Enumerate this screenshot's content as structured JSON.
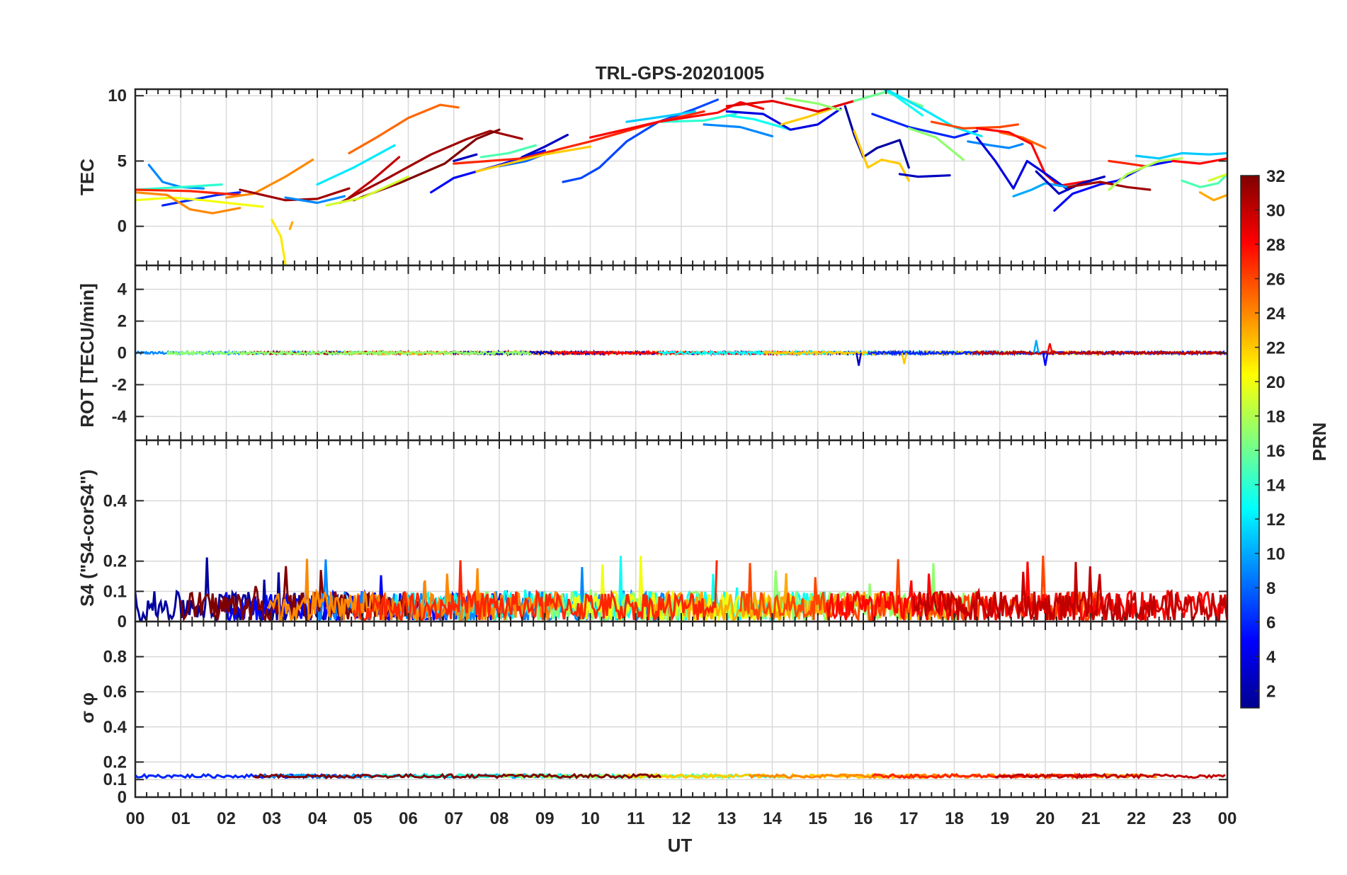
{
  "chart_data": {
    "type": "line",
    "title": "TRL-GPS-20201005",
    "xlabel": "UT",
    "x_ticks": [
      "00",
      "01",
      "02",
      "03",
      "04",
      "05",
      "06",
      "07",
      "08",
      "09",
      "10",
      "11",
      "12",
      "13",
      "14",
      "15",
      "16",
      "17",
      "18",
      "19",
      "20",
      "21",
      "22",
      "23",
      "00"
    ],
    "xlim": [
      0,
      24
    ],
    "grid": true,
    "colorbar": {
      "label": "PRN",
      "colormap": "jet",
      "range": [
        1,
        32
      ],
      "ticks": [
        "2",
        "4",
        "6",
        "8",
        "10",
        "12",
        "14",
        "16",
        "18",
        "20",
        "22",
        "24",
        "26",
        "28",
        "30",
        "32"
      ],
      "tick_values": [
        2,
        4,
        6,
        8,
        10,
        12,
        14,
        16,
        18,
        20,
        22,
        24,
        26,
        28,
        30,
        32
      ]
    },
    "panels": [
      {
        "name": "tec",
        "ylabel": "TEC",
        "ylim": [
          -3,
          10.5
        ],
        "y_ticks": [
          "0",
          "5",
          "10"
        ],
        "y_tick_values": [
          0,
          5,
          10
        ],
        "series": [
          {
            "prn": 9,
            "x": [
              0.3,
              0.6,
              1.0,
              1.5
            ],
            "y": [
              4.7,
              3.4,
              3.0,
              2.9
            ]
          },
          {
            "prn": 6,
            "x": [
              0.6,
              1.2,
              1.8,
              2.3
            ],
            "y": [
              1.6,
              2.0,
              2.4,
              2.6
            ]
          },
          {
            "prn": 20,
            "x": [
              0.0,
              0.8,
              1.5,
              2.0,
              2.8
            ],
            "y": [
              2.0,
              2.2,
              2.0,
              1.8,
              1.5
            ]
          },
          {
            "prn": 24,
            "x": [
              0.0,
              0.7,
              1.2,
              1.7,
              2.3
            ],
            "y": [
              2.6,
              2.4,
              1.3,
              1.0,
              1.4
            ]
          },
          {
            "prn": 14,
            "x": [
              0.0,
              1.0,
              1.9
            ],
            "y": [
              2.8,
              3.0,
              3.2
            ]
          },
          {
            "prn": 27,
            "x": [
              0.0,
              1.2,
              2.3
            ],
            "y": [
              2.8,
              2.7,
              2.4
            ]
          },
          {
            "prn": 24,
            "x": [
              2.0,
              2.6,
              3.3,
              3.9
            ],
            "y": [
              2.2,
              2.5,
              3.8,
              5.1
            ]
          },
          {
            "prn": 21,
            "x": [
              3.0,
              3.2,
              3.3
            ],
            "y": [
              0.5,
              -0.8,
              -2.9
            ]
          },
          {
            "prn": 23,
            "x": [
              3.4,
              3.45
            ],
            "y": [
              -0.2,
              0.3
            ]
          },
          {
            "prn": 31,
            "x": [
              2.3,
              2.8,
              3.3,
              4.0,
              4.7
            ],
            "y": [
              2.8,
              2.4,
              2.0,
              2.1,
              2.9
            ]
          },
          {
            "prn": 9,
            "x": [
              3.3,
              4.0,
              4.6
            ],
            "y": [
              2.2,
              1.8,
              2.3
            ]
          },
          {
            "prn": 12,
            "x": [
              4.0,
              4.8,
              5.7
            ],
            "y": [
              3.2,
              4.5,
              6.2
            ]
          },
          {
            "prn": 25,
            "x": [
              4.7,
              5.3,
              6.0,
              6.7,
              7.1
            ],
            "y": [
              5.6,
              6.8,
              8.3,
              9.3,
              9.1
            ]
          },
          {
            "prn": 30,
            "x": [
              4.7,
              5.2,
              5.8
            ],
            "y": [
              2.2,
              3.5,
              5.3
            ]
          },
          {
            "prn": 31,
            "x": [
              4.5,
              5.5,
              6.5,
              7.3,
              7.8,
              8.5
            ],
            "y": [
              1.8,
              3.6,
              5.5,
              6.7,
              7.3,
              6.7
            ]
          },
          {
            "prn": 32,
            "x": [
              4.8,
              5.8,
              6.8,
              7.5,
              8.0
            ],
            "y": [
              2.0,
              3.3,
              4.8,
              6.7,
              7.4
            ]
          },
          {
            "prn": 19,
            "x": [
              4.2,
              5.0,
              6.0
            ],
            "y": [
              1.6,
              2.2,
              3.8
            ]
          },
          {
            "prn": 5,
            "x": [
              6.5,
              7.0,
              8.0,
              9.0
            ],
            "y": [
              2.6,
              3.7,
              4.7,
              5.8
            ]
          },
          {
            "prn": 3,
            "x": [
              7.0,
              7.5
            ],
            "y": [
              5.0,
              5.5
            ]
          },
          {
            "prn": 8,
            "x": [
              8.0,
              8.6,
              9.2
            ],
            "y": [
              4.6,
              5.0,
              5.8
            ]
          },
          {
            "prn": 15,
            "x": [
              7.6,
              8.2,
              8.8
            ],
            "y": [
              5.3,
              5.6,
              6.2
            ]
          },
          {
            "prn": 3,
            "x": [
              8.5,
              9.0,
              9.5
            ],
            "y": [
              5.3,
              6.1,
              7.0
            ]
          },
          {
            "prn": 7,
            "x": [
              9.4,
              9.8,
              10.2,
              10.8,
              11.5,
              12.3,
              12.8
            ],
            "y": [
              3.4,
              3.7,
              4.5,
              6.5,
              8.0,
              9.0,
              9.7
            ]
          },
          {
            "prn": 27,
            "x": [
              7.0,
              8.5,
              10.0,
              11.5,
              12.5
            ],
            "y": [
              4.8,
              5.2,
              6.5,
              8.0,
              8.8
            ]
          },
          {
            "prn": 22,
            "x": [
              7.5,
              9.0,
              10.0
            ],
            "y": [
              4.2,
              5.5,
              6.1
            ]
          },
          {
            "prn": 11,
            "x": [
              10.8,
              11.6,
              12.3
            ],
            "y": [
              8.0,
              8.4,
              8.8
            ]
          },
          {
            "prn": 14,
            "x": [
              11.5,
              12.5,
              13.2
            ],
            "y": [
              8.0,
              8.1,
              8.6
            ]
          },
          {
            "prn": 9,
            "x": [
              12.5,
              13.3,
              14.0
            ],
            "y": [
              7.8,
              7.6,
              6.9
            ]
          },
          {
            "prn": 13,
            "x": [
              13.0,
              13.6,
              14.4
            ],
            "y": [
              8.5,
              8.2,
              7.4
            ]
          },
          {
            "prn": 28,
            "x": [
              10.0,
              11.5,
              12.8,
              13.3,
              13.8
            ],
            "y": [
              6.8,
              8.0,
              8.7,
              9.5,
              9.0
            ]
          },
          {
            "prn": 4,
            "x": [
              13.0,
              13.8,
              14.4,
              15.0,
              15.5
            ],
            "y": [
              8.8,
              8.6,
              7.4,
              7.8,
              9.0
            ]
          },
          {
            "prn": 22,
            "x": [
              14.2,
              14.8,
              15.3
            ],
            "y": [
              7.8,
              8.4,
              9.0
            ]
          },
          {
            "prn": 29,
            "x": [
              13.0,
              14.0,
              15.0,
              15.8
            ],
            "y": [
              9.2,
              9.6,
              8.8,
              9.6
            ]
          },
          {
            "prn": 17,
            "x": [
              14.3,
              15.0,
              15.5
            ],
            "y": [
              9.8,
              9.4,
              8.9
            ]
          },
          {
            "prn": 2,
            "x": [
              15.6,
              15.8,
              16.0,
              16.3,
              16.8,
              17.0
            ],
            "y": [
              9.2,
              7.0,
              5.3,
              6.0,
              6.6,
              4.5
            ]
          },
          {
            "prn": 22,
            "x": [
              15.8,
              16.1,
              16.4,
              16.8,
              17.0
            ],
            "y": [
              7.3,
              4.5,
              5.1,
              4.8,
              3.5
            ]
          },
          {
            "prn": 3,
            "x": [
              16.8,
              17.2,
              17.9
            ],
            "y": [
              4.0,
              3.8,
              3.9
            ]
          },
          {
            "prn": 16,
            "x": [
              15.8,
              16.5,
              17.3
            ],
            "y": [
              9.6,
              10.3,
              9.2
            ]
          },
          {
            "prn": 13,
            "x": [
              16.3,
              16.7,
              17.3
            ],
            "y": [
              10.8,
              10.0,
              8.5
            ]
          },
          {
            "prn": 6,
            "x": [
              16.2,
              17.0,
              18.0,
              18.5
            ],
            "y": [
              8.6,
              7.6,
              6.8,
              7.3
            ]
          },
          {
            "prn": 12,
            "x": [
              16.5,
              17.3,
              18.0,
              18.6
            ],
            "y": [
              10.5,
              9.0,
              7.6,
              6.9
            ]
          },
          {
            "prn": 17,
            "x": [
              17.0,
              17.6,
              18.2
            ],
            "y": [
              7.5,
              6.8,
              5.1
            ]
          },
          {
            "prn": 9,
            "x": [
              18.3,
              18.8,
              19.2,
              19.5
            ],
            "y": [
              6.5,
              6.2,
              6.0,
              6.3
            ]
          },
          {
            "prn": 26,
            "x": [
              17.5,
              18.2,
              19.0,
              19.4
            ],
            "y": [
              8.0,
              7.5,
              7.6,
              7.8
            ]
          },
          {
            "prn": 25,
            "x": [
              19.0,
              19.5,
              20.0
            ],
            "y": [
              7.2,
              6.8,
              6.0
            ]
          },
          {
            "prn": 28,
            "x": [
              18.5,
              19.2,
              19.7,
              20.0,
              20.3,
              21.0
            ],
            "y": [
              7.5,
              7.2,
              6.3,
              4.0,
              3.1,
              3.5
            ]
          },
          {
            "prn": 4,
            "x": [
              18.5,
              18.9,
              19.3,
              19.6,
              20.1,
              20.5
            ],
            "y": [
              6.8,
              5.0,
              2.9,
              5.0,
              3.8,
              2.8
            ]
          },
          {
            "prn": 10,
            "x": [
              19.3,
              19.7,
              20.0,
              20.5,
              21.0
            ],
            "y": [
              2.3,
              2.8,
              3.3,
              3.0,
              3.4
            ]
          },
          {
            "prn": 3,
            "x": [
              19.8,
              20.3,
              20.8,
              21.3
            ],
            "y": [
              4.2,
              2.5,
              3.3,
              3.8
            ]
          },
          {
            "prn": 5,
            "x": [
              20.2,
              20.6,
              21.2,
              21.6,
              22.2,
              22.8
            ],
            "y": [
              1.2,
              2.5,
              3.2,
              3.5,
              4.6,
              5.0
            ]
          },
          {
            "prn": 27,
            "x": [
              21.4,
              21.8,
              22.2
            ],
            "y": [
              5.0,
              4.8,
              4.6
            ]
          },
          {
            "prn": 31,
            "x": [
              20.5,
              21.2,
              21.8,
              22.3
            ],
            "y": [
              3.0,
              3.4,
              3.0,
              2.8
            ]
          },
          {
            "prn": 18,
            "x": [
              21.4,
              21.8,
              22.5,
              23.0
            ],
            "y": [
              2.8,
              4.0,
              5.0,
              5.2
            ]
          },
          {
            "prn": 11,
            "x": [
              22.0,
              22.5,
              23.0,
              23.6,
              24.0
            ],
            "y": [
              5.4,
              5.2,
              5.6,
              5.5,
              5.6
            ]
          },
          {
            "prn": 15,
            "x": [
              23.0,
              23.4,
              23.8,
              24.0
            ],
            "y": [
              3.5,
              3.0,
              3.3,
              4.0
            ]
          },
          {
            "prn": 23,
            "x": [
              23.4,
              23.7,
              24.0
            ],
            "y": [
              2.6,
              2.0,
              2.4
            ]
          },
          {
            "prn": 28,
            "x": [
              22.8,
              23.4,
              24.0
            ],
            "y": [
              5.0,
              4.8,
              5.2
            ]
          },
          {
            "prn": 19,
            "x": [
              23.6,
              24.0
            ],
            "y": [
              3.5,
              4.0
            ]
          }
        ]
      },
      {
        "name": "rot",
        "ylabel": "ROT [TECU/min]",
        "ylim": [
          -5.5,
          5.5
        ],
        "y_ticks": [
          "-4",
          "-2",
          "0",
          "2",
          "4"
        ],
        "y_tick_values": [
          -4,
          -2,
          0,
          2,
          4
        ],
        "baseline": 0.0,
        "noise_amplitude": 0.08,
        "spikes": [
          {
            "x": 15.9,
            "y": -0.8,
            "prn": 3
          },
          {
            "x": 16.9,
            "y": -0.7,
            "prn": 22
          },
          {
            "x": 19.8,
            "y": 0.8,
            "prn": 10
          },
          {
            "x": 20.0,
            "y": -0.8,
            "prn": 5
          },
          {
            "x": 20.1,
            "y": 0.6,
            "prn": 28
          }
        ]
      },
      {
        "name": "s4",
        "ylabel": "S4 (\"S4-corS4\")",
        "ylim": [
          0,
          0.6
        ],
        "y_ticks": [
          "0",
          "0.1",
          "0.2",
          "0.4"
        ],
        "y_tick_values": [
          0,
          0.1,
          0.2,
          0.4
        ],
        "baseline": 0.05,
        "noise_amplitude": 0.05,
        "max_value": 0.22
      },
      {
        "name": "sigma_phi",
        "ylabel": "σ φ",
        "ylim": [
          0,
          1
        ],
        "y_ticks": [
          "0",
          "0.1",
          "0.2",
          "0.4",
          "0.6",
          "0.8"
        ],
        "y_tick_values": [
          0,
          0.1,
          0.2,
          0.4,
          0.6,
          0.8
        ],
        "baseline": 0.12,
        "noise_amplitude": 0.01
      }
    ]
  }
}
